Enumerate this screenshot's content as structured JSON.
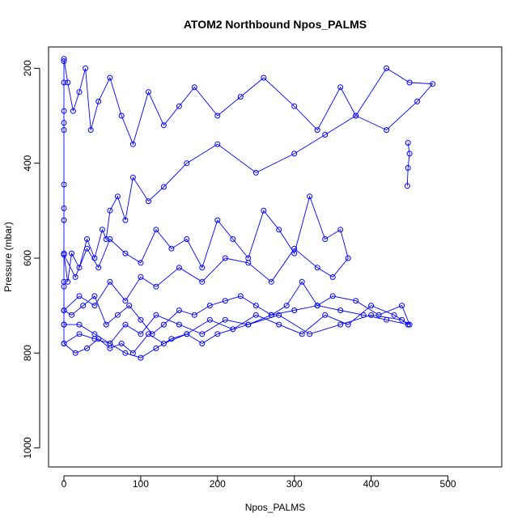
{
  "chart_data": {
    "type": "scatter",
    "title": "ATOM2 Northbound Npos_PALMS",
    "xlabel": "Npos_PALMS",
    "ylabel": "Pressure (mbar)",
    "xlim": [
      -20,
      570
    ],
    "ylim": [
      1040,
      155
    ],
    "y_reversed": true,
    "x_ticks": [
      0,
      100,
      200,
      300,
      400,
      500
    ],
    "y_ticks": [
      200,
      400,
      600,
      800,
      1000
    ],
    "grid": false,
    "legend": "none",
    "marker": "open-circle",
    "connected": true,
    "color": "#0000ff",
    "series": [
      {
        "x": [
          0,
          5,
          12,
          20,
          28,
          35,
          45,
          60,
          75,
          90,
          110,
          130,
          150,
          170,
          200,
          230,
          260,
          300,
          330,
          360,
          380,
          420,
          450,
          480,
          460,
          420,
          380,
          340,
          300,
          250,
          200,
          160,
          130,
          110,
          90,
          80,
          70,
          60,
          55,
          50,
          40,
          30,
          20,
          10,
          5,
          0,
          15,
          30,
          45,
          60,
          80,
          100,
          120,
          140,
          160,
          180,
          200,
          220,
          240,
          260,
          280,
          300,
          320,
          340,
          360,
          370,
          350,
          330,
          300,
          270,
          240,
          210,
          180,
          150,
          120,
          100,
          80,
          60,
          40,
          20,
          0,
          10,
          25,
          40,
          55,
          70,
          85,
          100,
          115,
          130,
          150,
          170,
          190,
          210,
          230,
          250,
          270,
          290,
          310,
          330,
          350,
          380,
          410,
          440,
          450,
          430,
          400,
          370,
          340,
          310,
          280,
          250,
          220,
          190,
          160,
          130,
          110,
          90,
          75,
          60,
          45,
          30,
          15,
          0,
          20,
          40,
          60,
          80,
          100,
          120,
          140,
          160,
          180,
          200,
          240,
          280,
          320,
          360,
          400,
          440,
          448,
          420,
          390,
          360,
          330,
          300,
          270,
          240,
          210,
          180,
          150,
          120,
          100,
          80,
          60,
          40,
          20,
          0
        ],
        "y": [
          180,
          230,
          290,
          250,
          200,
          330,
          270,
          220,
          300,
          360,
          250,
          320,
          280,
          240,
          300,
          260,
          220,
          280,
          330,
          240,
          300,
          200,
          230,
          233,
          270,
          330,
          300,
          340,
          380,
          420,
          360,
          400,
          450,
          480,
          430,
          520,
          470,
          500,
          560,
          540,
          600,
          560,
          620,
          590,
          650,
          593,
          640,
          580,
          620,
          560,
          590,
          610,
          540,
          580,
          560,
          620,
          520,
          560,
          600,
          500,
          540,
          590,
          470,
          560,
          540,
          600,
          640,
          620,
          580,
          650,
          610,
          600,
          650,
          620,
          660,
          640,
          690,
          650,
          700,
          680,
          710,
          720,
          700,
          680,
          740,
          720,
          700,
          730,
          760,
          740,
          710,
          720,
          700,
          690,
          680,
          700,
          720,
          700,
          650,
          700,
          680,
          690,
          720,
          700,
          740,
          720,
          700,
          740,
          720,
          760,
          740,
          720,
          750,
          730,
          760,
          780,
          760,
          800,
          780,
          790,
          770,
          790,
          800,
          780,
          760,
          770,
          780,
          800,
          810,
          790,
          770,
          760,
          780,
          760,
          740,
          720,
          760,
          740,
          720,
          730,
          740,
          730,
          720,
          710,
          700,
          710,
          720,
          740,
          730,
          760,
          740,
          720,
          760,
          740,
          780,
          760,
          740,
          740
        ]
      },
      {
        "x": [
          448,
          450,
          448,
          447
        ],
        "y": [
          357,
          380,
          410,
          448
        ]
      },
      {
        "x": [
          0,
          0,
          0,
          0,
          0,
          0,
          0,
          0,
          0,
          0,
          0,
          0,
          0,
          0
        ],
        "y": [
          185,
          230,
          290,
          315,
          330,
          445,
          495,
          520,
          590,
          650,
          660,
          710,
          740,
          780
        ]
      }
    ]
  }
}
